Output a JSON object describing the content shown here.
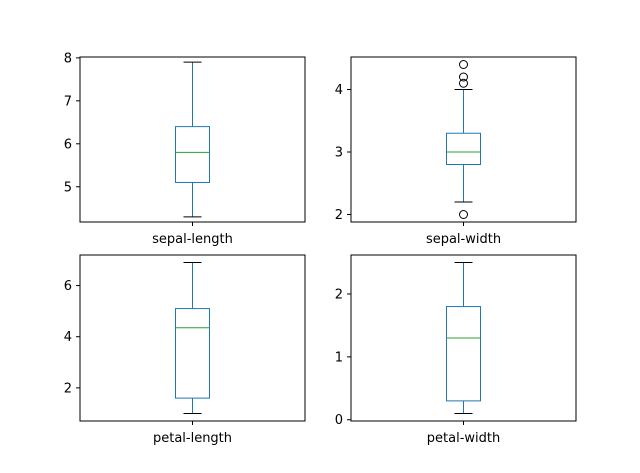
{
  "chart_data": [
    {
      "type": "box",
      "category": "sepal-length",
      "ylim": [
        4.18,
        8.02
      ],
      "yticks": [
        5,
        6,
        7,
        8
      ],
      "box": {
        "whisker_low": 4.3,
        "q1": 5.1,
        "median": 5.8,
        "q3": 6.4,
        "whisker_high": 7.9
      },
      "outliers": []
    },
    {
      "type": "box",
      "category": "sepal-width",
      "ylim": [
        1.88,
        4.52
      ],
      "yticks": [
        2,
        3,
        4
      ],
      "box": {
        "whisker_low": 2.2,
        "q1": 2.8,
        "median": 3.0,
        "q3": 3.3,
        "whisker_high": 4.0
      },
      "outliers": [
        2.0,
        4.1,
        4.2,
        4.4
      ]
    },
    {
      "type": "box",
      "category": "petal-length",
      "ylim": [
        0.705,
        7.195
      ],
      "yticks": [
        2,
        4,
        6
      ],
      "box": {
        "whisker_low": 1.0,
        "q1": 1.6,
        "median": 4.35,
        "q3": 5.1,
        "whisker_high": 6.9
      },
      "outliers": []
    },
    {
      "type": "box",
      "category": "petal-width",
      "ylim": [
        -0.02,
        2.62
      ],
      "yticks": [
        0,
        1,
        2
      ],
      "box": {
        "whisker_low": 0.1,
        "q1": 0.3,
        "median": 1.3,
        "q3": 1.8,
        "whisker_high": 2.5
      },
      "outliers": []
    }
  ],
  "colors": {
    "box": "#1f77b4",
    "median": "#2ca02c",
    "whisker": "#000000",
    "axes": "#000000"
  }
}
